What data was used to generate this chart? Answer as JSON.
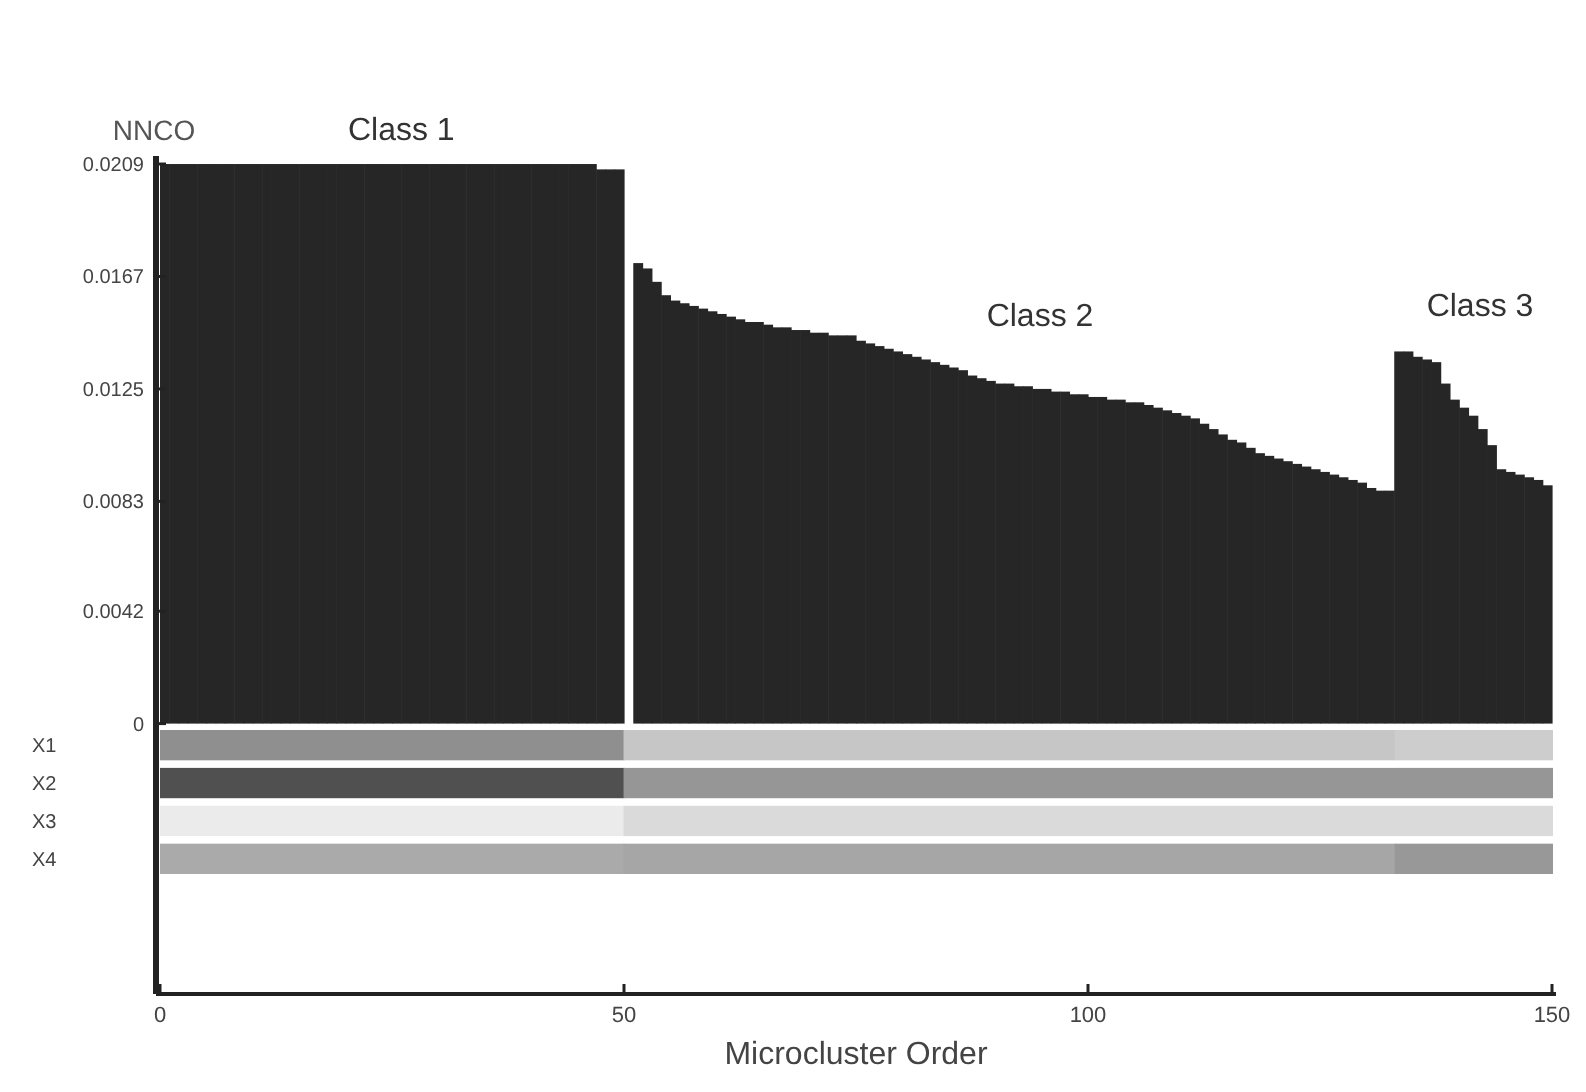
{
  "chart_data": [
    {
      "type": "bar",
      "ylabel": "NNCO",
      "xlabel": "Microcluster Order",
      "color": "#262626",
      "xlim": [
        0,
        150
      ],
      "xticks": [
        0,
        50,
        100,
        150
      ],
      "ylim": [
        -0.0101,
        0.0212
      ],
      "yticks": [
        0,
        0.0042,
        0.0083,
        0.0125,
        0.0167,
        0.0209
      ],
      "annotations": [
        {
          "text": "Class 1",
          "x": 26,
          "y": 0.0212
        },
        "Class 2",
        "Class 3"
      ],
      "x": [
        0.5,
        1.5,
        2.5,
        3.5,
        4.5,
        5.5,
        6.5,
        7.5,
        8.5,
        9.5,
        10.5,
        11.5,
        12.5,
        13.5,
        14.5,
        15.5,
        16.5,
        17.5,
        18.5,
        19.5,
        20.5,
        21.5,
        22.5,
        23.5,
        24.5,
        25.5,
        26.5,
        27.5,
        28.5,
        29.5,
        30.5,
        31.5,
        32.5,
        33.5,
        34.5,
        35.5,
        36.5,
        37.5,
        38.5,
        39.5,
        40.5,
        41.5,
        42.5,
        43.5,
        44.5,
        45.5,
        46.5,
        47.5,
        48.5,
        49.5,
        50.5,
        51.5,
        52.5,
        53.5,
        54.5,
        55.5,
        56.5,
        57.5,
        58.5,
        59.5,
        60.5,
        61.5,
        62.5,
        63.5,
        64.5,
        65.5,
        66.5,
        67.5,
        68.5,
        69.5,
        70.5,
        71.5,
        72.5,
        73.5,
        74.5,
        75.5,
        76.5,
        77.5,
        78.5,
        79.5,
        80.5,
        81.5,
        82.5,
        83.5,
        84.5,
        85.5,
        86.5,
        87.5,
        88.5,
        89.5,
        90.5,
        91.5,
        92.5,
        93.5,
        94.5,
        95.5,
        96.5,
        97.5,
        98.5,
        99.5,
        100.5,
        101.5,
        102.5,
        103.5,
        104.5,
        105.5,
        106.5,
        107.5,
        108.5,
        109.5,
        110.5,
        111.5,
        112.5,
        113.5,
        114.5,
        115.5,
        116.5,
        117.5,
        118.5,
        119.5,
        120.5,
        121.5,
        122.5,
        123.5,
        124.5,
        125.5,
        126.5,
        127.5,
        128.5,
        129.5,
        130.5,
        131.5,
        132.5,
        133.5,
        134.5,
        135.5,
        136.5,
        137.5,
        138.5,
        139.5,
        140.5,
        141.5,
        142.5,
        143.5,
        144.5,
        145.5,
        146.5,
        147.5,
        148.5,
        149.5
      ],
      "values": [
        0.0209,
        0.0209,
        0.0209,
        0.0209,
        0.0209,
        0.0209,
        0.0209,
        0.0209,
        0.0209,
        0.0209,
        0.0209,
        0.0209,
        0.0209,
        0.0209,
        0.0209,
        0.0209,
        0.0209,
        0.0209,
        0.0209,
        0.0209,
        0.0209,
        0.0209,
        0.0209,
        0.0209,
        0.0209,
        0.0209,
        0.0209,
        0.0209,
        0.0209,
        0.0209,
        0.0209,
        0.0209,
        0.0209,
        0.0209,
        0.0209,
        0.0209,
        0.0209,
        0.0209,
        0.0209,
        0.0209,
        0.0209,
        0.0209,
        0.0209,
        0.0209,
        0.0209,
        0.0209,
        0.0209,
        0.0207,
        0.0207,
        0.0207,
        null,
        0.0172,
        0.017,
        0.0165,
        0.016,
        0.0158,
        0.0157,
        0.0156,
        0.0155,
        0.0154,
        0.0153,
        0.0152,
        0.0151,
        0.015,
        0.015,
        0.0149,
        0.0148,
        0.0148,
        0.0147,
        0.0147,
        0.0146,
        0.0146,
        0.0145,
        0.0145,
        0.0145,
        0.0143,
        0.0142,
        0.0141,
        0.014,
        0.0139,
        0.0138,
        0.0137,
        0.0136,
        0.0135,
        0.0134,
        0.0133,
        0.0132,
        0.013,
        0.0129,
        0.0128,
        0.0127,
        0.0127,
        0.0126,
        0.0126,
        0.0125,
        0.0125,
        0.0124,
        0.0124,
        0.0123,
        0.0123,
        0.0122,
        0.0122,
        0.0121,
        0.0121,
        0.012,
        0.012,
        0.0119,
        0.0118,
        0.0117,
        0.0116,
        0.0115,
        0.0114,
        0.0112,
        0.011,
        0.0108,
        0.0106,
        0.0105,
        0.0103,
        0.0101,
        0.01,
        0.0099,
        0.0098,
        0.0097,
        0.0096,
        0.0095,
        0.0094,
        0.0093,
        0.0092,
        0.0091,
        0.009,
        0.0088,
        0.0087,
        0.0087,
        0.0139,
        0.0139,
        0.0137,
        0.0136,
        0.0135,
        0.0127,
        0.0121,
        0.0118,
        0.0115,
        0.011,
        0.0104,
        0.0095,
        0.0094,
        0.0093,
        0.0092,
        0.0091,
        0.0089
      ]
    },
    {
      "type": "other",
      "annotations": [
        "X1",
        "X2",
        "X3",
        "X4"
      ]
    }
  ]
}
